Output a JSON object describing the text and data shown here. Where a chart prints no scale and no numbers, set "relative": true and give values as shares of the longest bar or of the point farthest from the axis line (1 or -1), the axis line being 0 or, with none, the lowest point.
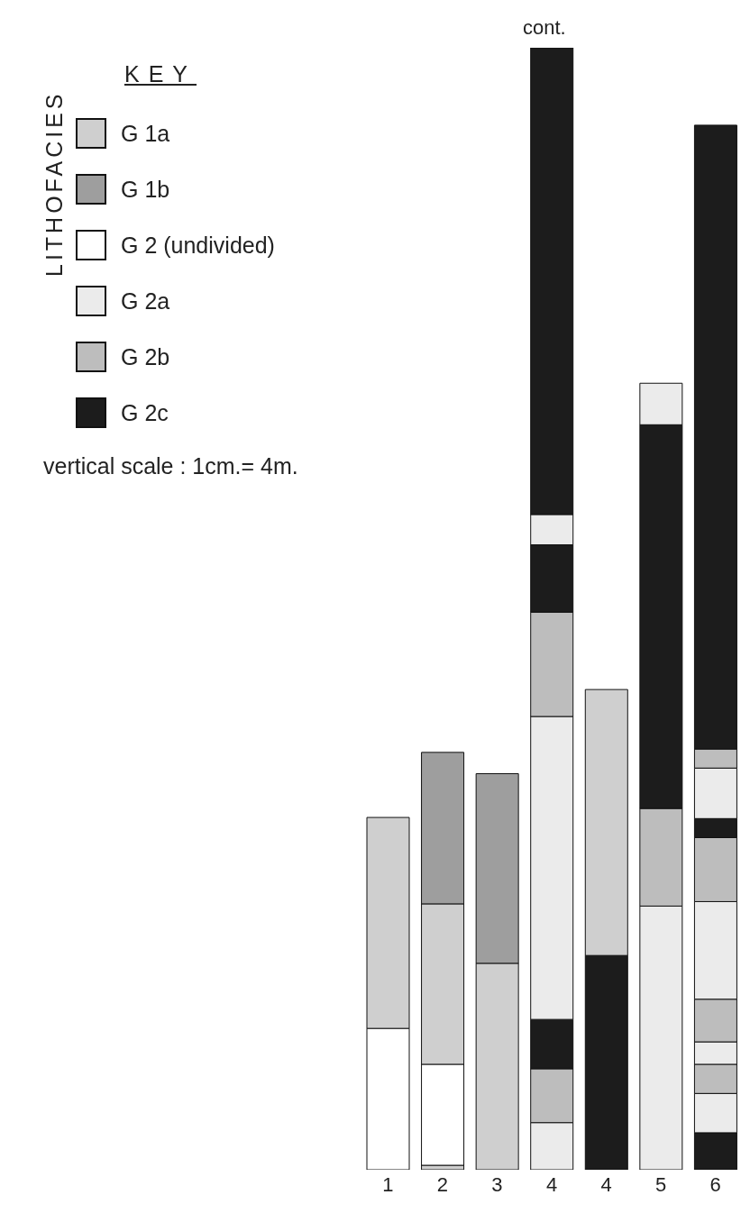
{
  "chart_data": {
    "type": "bar",
    "stacked": true,
    "relative": true,
    "legend": "top left",
    "legend_title": "KEY",
    "annotations": [
      "LITHOFACIES",
      "vertical scale : 1cm.= 4m.",
      "cont."
    ],
    "categories": [
      "1",
      "2",
      "3",
      "4",
      "4",
      "5",
      "6"
    ],
    "series": [
      {
        "values": [
          0.126,
          0.004,
          0.184,
          0.042,
          0.191,
          0.235,
          0.033
        ],
        "colors": [
          "#ffffff",
          "#cfcfcf",
          "#cfcfcf",
          "#ebebeb",
          "#1c1c1c",
          "#ebebeb",
          "#1c1c1c"
        ]
      },
      {
        "values": [
          0.188,
          0.09,
          0.169,
          0.048,
          0.237,
          0.087,
          0.035
        ],
        "colors": [
          "#cfcfcf",
          "#ffffff",
          "#9e9e9e",
          "#bdbdbd",
          "#cfcfcf",
          "#bdbdbd",
          "#ebebeb"
        ]
      },
      {
        "values": [
          null,
          0.143,
          null,
          0.044,
          null,
          0.342,
          0.026
        ],
        "colors": [
          null,
          "#cfcfcf",
          null,
          "#1c1c1c",
          null,
          "#1c1c1c",
          "#bdbdbd"
        ]
      },
      {
        "values": [
          null,
          0.135,
          null,
          0.27,
          null,
          0.037,
          0.02
        ],
        "colors": [
          null,
          "#9e9e9e",
          null,
          "#ebebeb",
          null,
          "#ebebeb",
          "#ebebeb"
        ]
      },
      {
        "values": [
          null,
          null,
          null,
          0.093,
          null,
          null,
          0.038
        ],
        "colors": [
          null,
          null,
          null,
          "#bdbdbd",
          null,
          null,
          "#bdbdbd"
        ]
      },
      {
        "values": [
          null,
          null,
          null,
          0.06,
          null,
          null,
          0.087
        ],
        "colors": [
          null,
          null,
          null,
          "#1c1c1c",
          null,
          null,
          "#ebebeb"
        ]
      },
      {
        "values": [
          null,
          null,
          null,
          0.027,
          null,
          null,
          0.057
        ],
        "colors": [
          null,
          null,
          null,
          "#ebebeb",
          null,
          null,
          "#bdbdbd"
        ]
      },
      {
        "values": [
          null,
          null,
          null,
          0.416,
          null,
          null,
          0.017
        ],
        "colors": [
          null,
          null,
          null,
          "#1c1c1c",
          null,
          null,
          "#1c1c1c"
        ]
      },
      {
        "values": [
          null,
          null,
          null,
          null,
          null,
          null,
          0.045
        ],
        "colors": [
          null,
          null,
          null,
          null,
          null,
          null,
          "#ebebeb"
        ]
      },
      {
        "values": [
          null,
          null,
          null,
          null,
          null,
          null,
          0.017
        ],
        "colors": [
          null,
          null,
          null,
          null,
          null,
          null,
          "#bdbdbd"
        ]
      },
      {
        "values": [
          null,
          null,
          null,
          null,
          null,
          null,
          0.556
        ],
        "colors": [
          null,
          null,
          null,
          null,
          null,
          null,
          "#1c1c1c"
        ]
      },
      {
        "name": "G 1a",
        "color": "#cfcfcf",
        "values": [
          null,
          null,
          null,
          null,
          null,
          null,
          null
        ]
      },
      {
        "name": "G 1b",
        "color": "#9e9e9e",
        "values": [
          null,
          null,
          null,
          null,
          null,
          null,
          null
        ]
      },
      {
        "name": "G 2 (undivided)",
        "color": "#ffffff",
        "values": [
          null,
          null,
          null,
          null,
          null,
          null,
          null
        ]
      },
      {
        "name": "G 2a",
        "color": "#ebebeb",
        "values": [
          null,
          null,
          null,
          null,
          null,
          null,
          null
        ]
      },
      {
        "name": "G 2b",
        "color": "#bdbdbd",
        "values": [
          null,
          null,
          null,
          null,
          null,
          null,
          null
        ]
      },
      {
        "name": "G 2c",
        "color": "#1c1c1c",
        "values": [
          null,
          null,
          null,
          null,
          null,
          null,
          null
        ]
      }
    ]
  }
}
